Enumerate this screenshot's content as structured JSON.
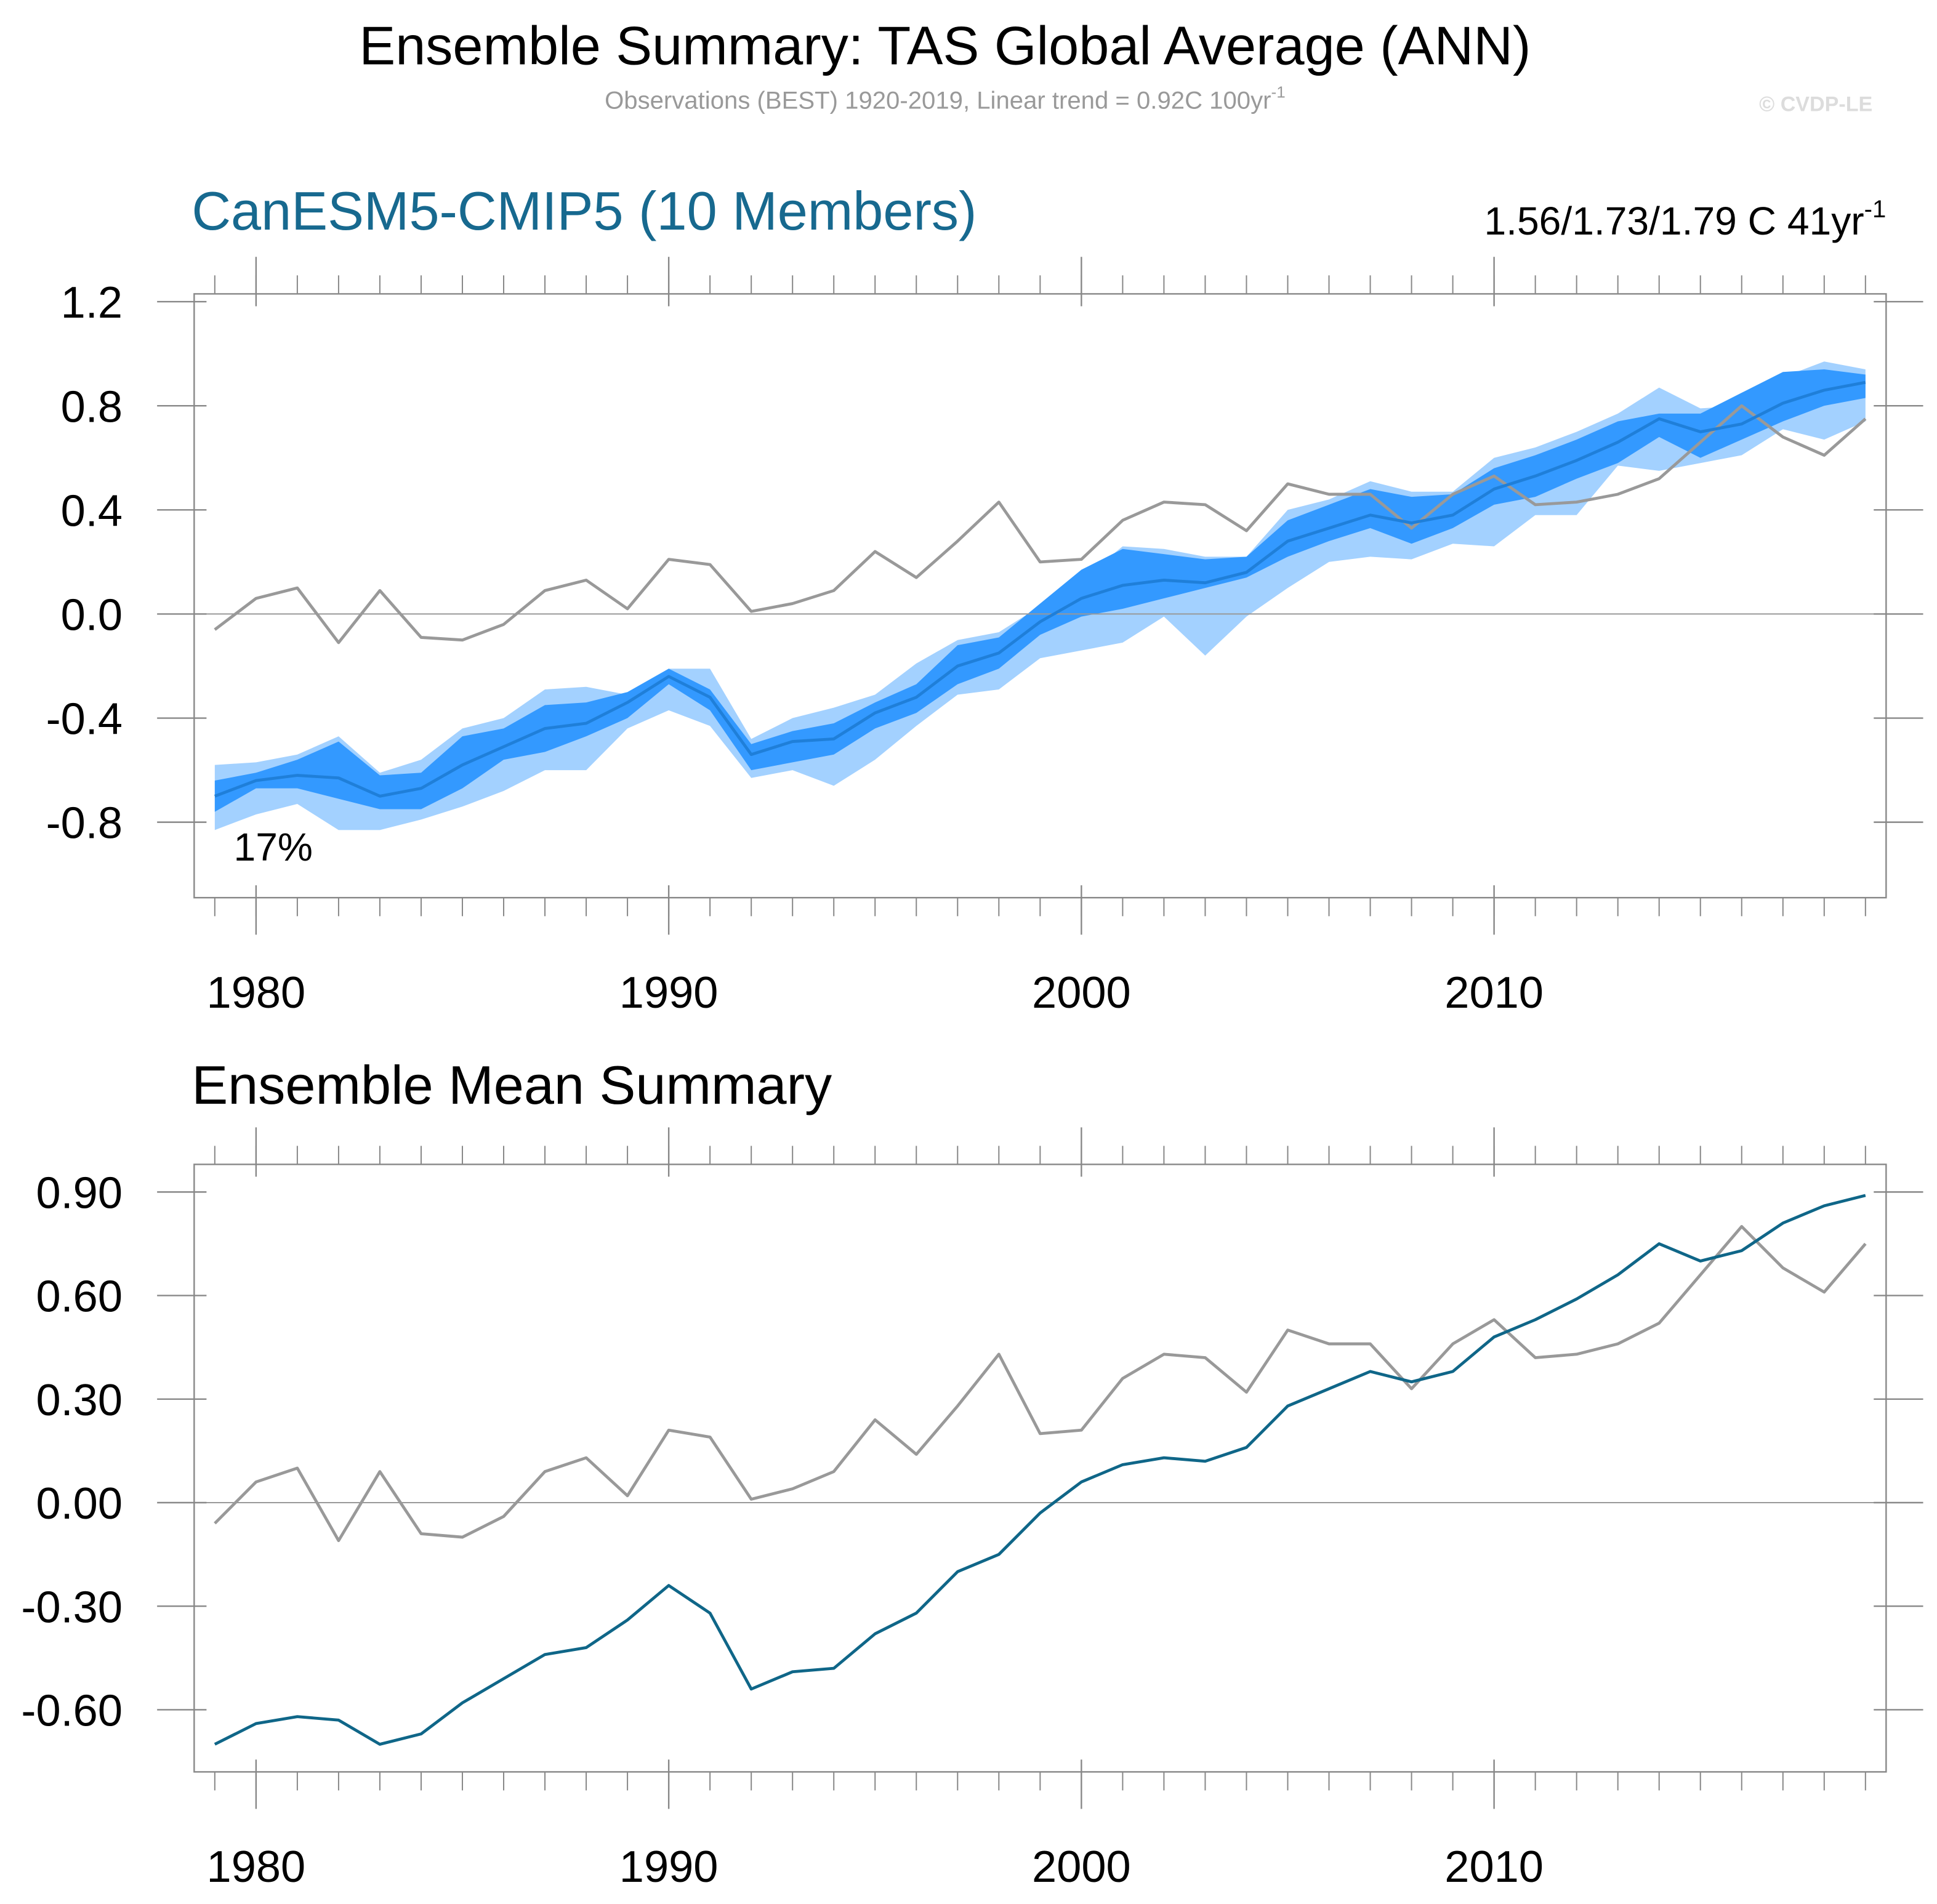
{
  "header": {
    "title": "Ensemble Summary: TAS Global Average (ANN)",
    "subtitle": "Observations (BEST) 1920-2019, Linear trend = 0.92C 100yr",
    "subtitle_superscript": "-1",
    "credit": "© CVDP-LE"
  },
  "chart_data": [
    {
      "type": "band",
      "title": "CanESM5-CMIP5 (10 Members)",
      "title_color": "#17698f",
      "trend_label": "1.56/1.73/1.79 C 41yr",
      "trend_superscript": "-1",
      "annotation": "17%",
      "x": [
        1979,
        1980,
        1981,
        1982,
        1983,
        1984,
        1985,
        1986,
        1987,
        1988,
        1989,
        1990,
        1991,
        1992,
        1993,
        1994,
        1995,
        1996,
        1997,
        1998,
        1999,
        2000,
        2001,
        2002,
        2003,
        2004,
        2005,
        2006,
        2007,
        2008,
        2009,
        2010,
        2011,
        2012,
        2013,
        2014,
        2015,
        2016,
        2017,
        2018,
        2019
      ],
      "bands": [
        {
          "color": "#a3d1ff",
          "lower": [
            -0.83,
            -0.77,
            -0.73,
            -0.83,
            -0.83,
            -0.79,
            -0.74,
            -0.68,
            -0.6,
            -0.6,
            -0.44,
            -0.37,
            -0.43,
            -0.63,
            -0.6,
            -0.66,
            -0.56,
            -0.43,
            -0.31,
            -0.29,
            -0.17,
            -0.14,
            -0.11,
            -0.01,
            -0.16,
            -0.01,
            0.1,
            0.2,
            0.22,
            0.21,
            0.27,
            0.26,
            0.38,
            0.38,
            0.57,
            0.55,
            0.58,
            0.61,
            0.71,
            0.67,
            0.74
          ],
          "upper": [
            -0.58,
            -0.57,
            -0.54,
            -0.47,
            -0.61,
            -0.56,
            -0.44,
            -0.4,
            -0.29,
            -0.28,
            -0.31,
            -0.21,
            -0.21,
            -0.48,
            -0.4,
            -0.36,
            -0.31,
            -0.19,
            -0.1,
            -0.07,
            0.03,
            0.13,
            0.26,
            0.25,
            0.22,
            0.22,
            0.4,
            0.44,
            0.51,
            0.47,
            0.47,
            0.6,
            0.64,
            0.7,
            0.77,
            0.87,
            0.79,
            0.8,
            0.91,
            0.97,
            0.94
          ]
        },
        {
          "color": "#3399ff",
          "lower": [
            -0.76,
            -0.67,
            -0.67,
            -0.71,
            -0.75,
            -0.75,
            -0.67,
            -0.56,
            -0.53,
            -0.47,
            -0.4,
            -0.27,
            -0.37,
            -0.6,
            -0.57,
            -0.54,
            -0.44,
            -0.38,
            -0.27,
            -0.21,
            -0.08,
            -0.01,
            0.02,
            0.06,
            0.1,
            0.14,
            0.22,
            0.28,
            0.33,
            0.27,
            0.33,
            0.42,
            0.45,
            0.52,
            0.58,
            0.68,
            0.6,
            0.67,
            0.74,
            0.8,
            0.83
          ],
          "upper": [
            -0.64,
            -0.61,
            -0.56,
            -0.49,
            -0.62,
            -0.61,
            -0.47,
            -0.44,
            -0.35,
            -0.34,
            -0.3,
            -0.21,
            -0.29,
            -0.5,
            -0.45,
            -0.42,
            -0.34,
            -0.27,
            -0.12,
            -0.09,
            0.04,
            0.17,
            0.25,
            0.23,
            0.21,
            0.22,
            0.36,
            0.42,
            0.48,
            0.45,
            0.46,
            0.56,
            0.61,
            0.67,
            0.74,
            0.77,
            0.77,
            0.85,
            0.93,
            0.94,
            0.92
          ]
        }
      ],
      "series": [
        {
          "color": "#999999",
          "values": [
            -0.06,
            0.06,
            0.1,
            -0.11,
            0.09,
            -0.09,
            -0.1,
            -0.04,
            0.09,
            0.13,
            0.02,
            0.21,
            0.19,
            0.01,
            0.04,
            0.09,
            0.24,
            0.14,
            0.28,
            0.43,
            0.2,
            0.21,
            0.36,
            0.43,
            0.42,
            0.32,
            0.5,
            0.46,
            0.46,
            0.33,
            0.46,
            0.53,
            0.42,
            0.43,
            0.46,
            0.52,
            0.66,
            0.8,
            0.68,
            0.61,
            0.75
          ]
        },
        {
          "color": "#1f7fd9",
          "values": [
            -0.7,
            -0.64,
            -0.62,
            -0.63,
            -0.7,
            -0.67,
            -0.58,
            -0.51,
            -0.44,
            -0.42,
            -0.34,
            -0.24,
            -0.32,
            -0.54,
            -0.49,
            -0.48,
            -0.38,
            -0.32,
            -0.2,
            -0.15,
            -0.03,
            0.06,
            0.11,
            0.13,
            0.12,
            0.16,
            0.28,
            0.33,
            0.38,
            0.35,
            0.38,
            0.48,
            0.53,
            0.59,
            0.66,
            0.75,
            0.7,
            0.73,
            0.81,
            0.86,
            0.89
          ]
        }
      ],
      "xlim": [
        1978.5,
        2019.5
      ],
      "xticks": [
        1980,
        1990,
        2000,
        2010
      ],
      "ylim": [
        -1.09,
        1.23
      ],
      "yticks": [
        1.2,
        0.8,
        0.4,
        {
          "value": 0,
          "label": "0.0"
        },
        -0.4,
        -0.8
      ],
      "zero_line": true
    },
    {
      "type": "line",
      "title": "Ensemble Mean Summary",
      "title_color": "#000000",
      "x": [
        1979,
        1980,
        1981,
        1982,
        1983,
        1984,
        1985,
        1986,
        1987,
        1988,
        1989,
        1990,
        1991,
        1992,
        1993,
        1994,
        1995,
        1996,
        1997,
        1998,
        1999,
        2000,
        2001,
        2002,
        2003,
        2004,
        2005,
        2006,
        2007,
        2008,
        2009,
        2010,
        2011,
        2012,
        2013,
        2014,
        2015,
        2016,
        2017,
        2018,
        2019
      ],
      "series": [
        {
          "color": "#999999",
          "values": [
            -0.06,
            0.06,
            0.1,
            -0.11,
            0.09,
            -0.09,
            -0.1,
            -0.04,
            0.09,
            0.13,
            0.02,
            0.21,
            0.19,
            0.01,
            0.04,
            0.09,
            0.24,
            0.14,
            0.28,
            0.43,
            0.2,
            0.21,
            0.36,
            0.43,
            0.42,
            0.32,
            0.5,
            0.46,
            0.46,
            0.33,
            0.46,
            0.53,
            0.42,
            0.43,
            0.46,
            0.52,
            0.66,
            0.8,
            0.68,
            0.61,
            0.75
          ]
        },
        {
          "color": "#0f6688",
          "values": [
            -0.7,
            -0.64,
            -0.62,
            -0.63,
            -0.7,
            -0.67,
            -0.58,
            -0.51,
            -0.44,
            -0.42,
            -0.34,
            -0.24,
            -0.32,
            -0.54,
            -0.49,
            -0.48,
            -0.38,
            -0.32,
            -0.2,
            -0.15,
            -0.03,
            0.06,
            0.11,
            0.13,
            0.12,
            0.16,
            0.28,
            0.33,
            0.38,
            0.35,
            0.38,
            0.48,
            0.53,
            0.59,
            0.66,
            0.75,
            0.7,
            0.73,
            0.81,
            0.86,
            0.89
          ]
        }
      ],
      "xlim": [
        1978.5,
        2019.5
      ],
      "xticks": [
        1980,
        1990,
        2000,
        2010
      ],
      "ylim": [
        -0.78,
        0.98
      ],
      "yticks": [
        {
          "value": 0.9,
          "label": "0.90"
        },
        {
          "value": 0.6,
          "label": "0.60"
        },
        {
          "value": 0.3,
          "label": "0.30"
        },
        {
          "value": 0,
          "label": "0.00"
        },
        {
          "value": -0.3,
          "label": "-0.30"
        },
        {
          "value": -0.6,
          "label": "-0.60"
        }
      ],
      "zero_line": true
    }
  ]
}
